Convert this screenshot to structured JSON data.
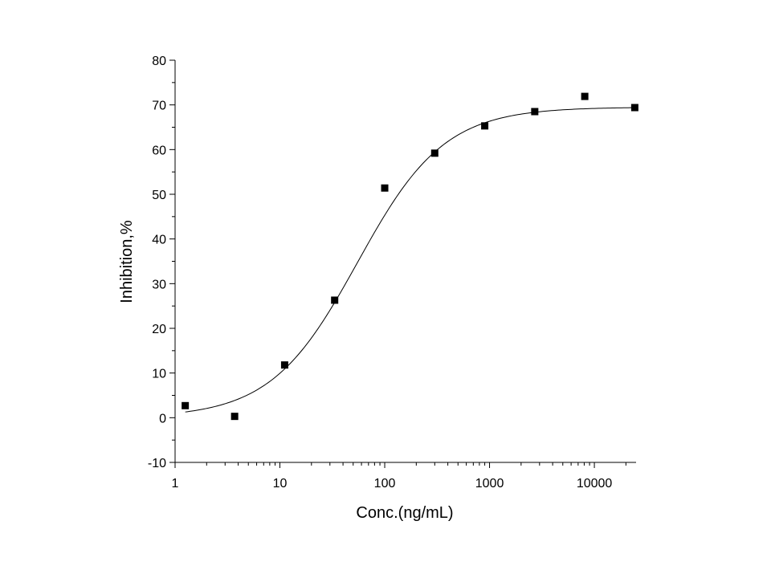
{
  "chart_data": {
    "type": "scatter",
    "title": "",
    "xlabel": "Conc.(ng/mL)",
    "ylabel": "Inhibition,%",
    "xscale": "log",
    "xlim": [
      1,
      25000
    ],
    "ylim": [
      -10,
      80
    ],
    "x_ticks": [
      1,
      10,
      100,
      1000,
      10000
    ],
    "x_tick_labels": [
      "1",
      "10",
      "100",
      "1000",
      "10000"
    ],
    "y_ticks": [
      -10,
      0,
      10,
      20,
      30,
      40,
      50,
      60,
      70,
      80
    ],
    "y_tick_labels": [
      "-10",
      "0",
      "10",
      "20",
      "30",
      "40",
      "50",
      "60",
      "70",
      "80"
    ],
    "grid": false,
    "legend": "none",
    "marker": "square",
    "colors": {
      "points": "#000000",
      "fit": "#000000",
      "axes": "#000000"
    },
    "points": [
      {
        "x": 1.25,
        "y": 2.7
      },
      {
        "x": 3.7,
        "y": 0.3
      },
      {
        "x": 11.1,
        "y": 11.8
      },
      {
        "x": 33.3,
        "y": 26.3
      },
      {
        "x": 100,
        "y": 51.4
      },
      {
        "x": 300,
        "y": 59.2
      },
      {
        "x": 900,
        "y": 65.3
      },
      {
        "x": 2700,
        "y": 68.5
      },
      {
        "x": 8100,
        "y": 71.9
      },
      {
        "x": 24300,
        "y": 69.4
      }
    ],
    "fit": {
      "model": "four-parameter logistic",
      "bottom": 0,
      "top": 69.5,
      "ec50": 55,
      "hill": 1.05,
      "x_range": [
        1.25,
        24300
      ]
    }
  }
}
